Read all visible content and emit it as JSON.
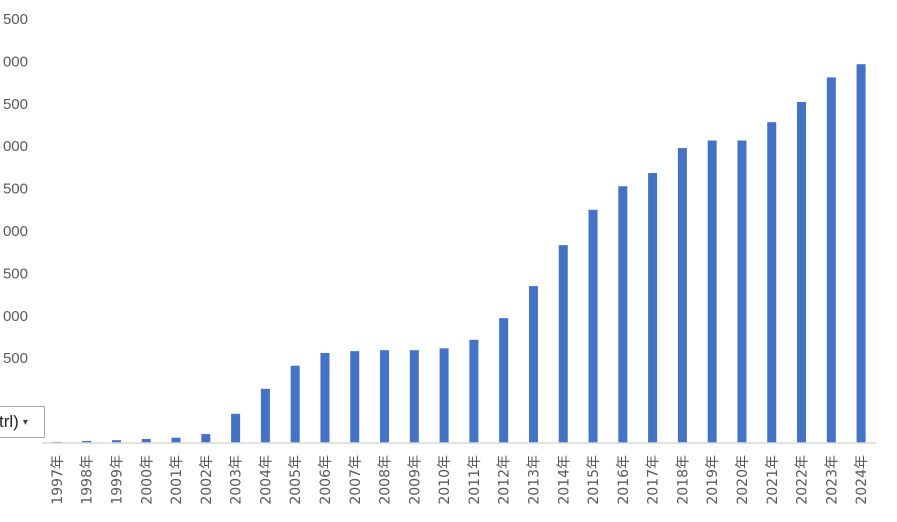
{
  "chart_data": {
    "type": "bar",
    "title": "",
    "xlabel": "",
    "ylabel": "",
    "ylim": [
      0,
      4500
    ],
    "y_tick_labels": [
      "500",
      "000",
      "500",
      "000",
      "500",
      "000",
      "500",
      "000",
      "500",
      "",
      ""
    ],
    "categories": [
      "1997年",
      "1998年",
      "1999年",
      "2000年",
      "2001年",
      "2002年",
      "2003年",
      "2004年",
      "2005年",
      "2006年",
      "2007年",
      "2008年",
      "2009年",
      "2010年",
      "2011年",
      "2012年",
      "2013年",
      "2014年",
      "2015年",
      "2016年",
      "2017年",
      "2018年",
      "2019年",
      "2020年",
      "2021年",
      "2022年",
      "2023年",
      "2024年"
    ],
    "values": [
      12,
      22,
      30,
      42,
      56,
      95,
      310,
      575,
      820,
      955,
      975,
      985,
      985,
      1005,
      1095,
      1325,
      1665,
      2100,
      2475,
      2725,
      2865,
      3130,
      3210,
      3210,
      3405,
      3620,
      3880,
      4020
    ],
    "bar_color": "#4472C4",
    "grid": false,
    "legend": "none"
  },
  "paste_options": {
    "label": "trl)",
    "caret": "▾"
  }
}
